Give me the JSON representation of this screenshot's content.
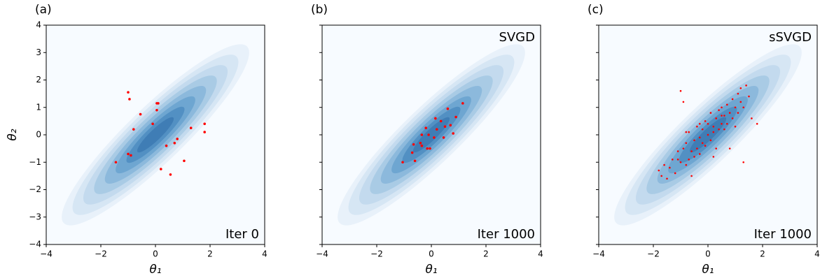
{
  "chart_data": [
    {
      "type": "scatter",
      "panel_label": "(a)",
      "annotation": "Iter 0",
      "annotation_corner": "lower right",
      "xlabel": "θ₁",
      "ylabel": "θ₂",
      "color": "#ff0000",
      "x": [
        -1.0,
        -0.95,
        0.05,
        0.1,
        -0.55,
        0.05,
        -0.8,
        -0.1,
        1.8,
        1.3,
        1.8,
        0.8,
        0.7,
        0.4,
        -1.0,
        -0.9,
        -1.45,
        0.2,
        1.05,
        0.55
      ],
      "y": [
        1.55,
        1.3,
        1.15,
        1.15,
        0.75,
        0.9,
        0.2,
        0.4,
        0.4,
        0.25,
        0.1,
        -0.15,
        -0.3,
        -0.4,
        -0.7,
        -0.75,
        -1.0,
        -1.25,
        -0.95,
        -1.45
      ],
      "xlim": [
        -4,
        4
      ],
      "ylim": [
        -4,
        4
      ],
      "xticks": [
        {
          "value": -4,
          "label": "−4"
        },
        {
          "value": -2,
          "label": "−2"
        },
        0,
        2,
        4
      ],
      "yticks": [
        {
          "value": -4,
          "label": "−4"
        },
        {
          "value": -3,
          "label": "−3"
        },
        {
          "value": -2,
          "label": "−2"
        },
        {
          "value": -1,
          "label": "−1"
        },
        0,
        1,
        2,
        3,
        4
      ]
    },
    {
      "type": "scatter",
      "panel_label": "(b)",
      "annotation": "Iter 1000",
      "method": "SVGD",
      "annotation_corner": "lower right",
      "xlabel": "θ₁",
      "color": "#ff0000",
      "x": [
        -1.05,
        -0.7,
        -0.6,
        -0.65,
        -0.4,
        -0.35,
        -0.35,
        -0.2,
        -0.1,
        0.1,
        -0.05,
        0.15,
        0.2,
        0.35,
        0.45,
        0.5,
        0.6,
        0.8,
        0.7,
        0.9,
        1.15,
        -0.15
      ],
      "y": [
        -1.0,
        -0.65,
        -0.95,
        -0.35,
        -0.3,
        -0.4,
        0.0,
        0.25,
        0.0,
        -0.1,
        -0.5,
        0.6,
        0.2,
        0.5,
        -0.1,
        0.3,
        0.95,
        0.05,
        0.35,
        0.65,
        1.15,
        -0.5
      ],
      "xlim": [
        -4,
        4
      ],
      "ylim": [
        -4,
        4
      ],
      "xticks": [
        {
          "value": -4,
          "label": "−4"
        },
        {
          "value": -2,
          "label": "−2"
        },
        0,
        2,
        4
      ],
      "yticks": [
        -4,
        -3,
        -2,
        -1,
        0,
        1,
        2,
        3,
        4
      ]
    },
    {
      "type": "scatter",
      "panel_label": "(c)",
      "annotation": "Iter 1000",
      "method": "sSVGD",
      "annotation_corner": "lower right",
      "xlabel": "θ₁",
      "color": "#ff0000",
      "x": [
        -1.8,
        -1.7,
        -1.6,
        -1.5,
        -1.4,
        -1.3,
        -1.2,
        -1.1,
        -1.0,
        -1.0,
        -0.9,
        -0.9,
        -0.8,
        -0.8,
        -0.7,
        -0.7,
        -0.6,
        -0.6,
        -0.5,
        -0.5,
        -0.4,
        -0.4,
        -0.3,
        -0.3,
        -0.2,
        -0.2,
        -0.1,
        -0.1,
        0,
        0,
        0.1,
        0.1,
        0.2,
        0.2,
        0.3,
        0.3,
        0.4,
        0.4,
        0.5,
        0.5,
        0.6,
        0.6,
        0.7,
        0.7,
        0.8,
        0.8,
        0.9,
        0.9,
        1.0,
        1.0,
        1.1,
        1.1,
        1.2,
        1.2,
        1.3,
        1.4,
        1.5,
        1.6,
        1.8,
        -1.1,
        -0.3,
        0.2,
        0.5,
        -0.8,
        1.3
      ],
      "y": [
        -1.3,
        -1.5,
        -1.1,
        -1.6,
        -1.2,
        -0.9,
        -1.4,
        -0.6,
        1.6,
        -1.0,
        1.2,
        -0.5,
        -1.1,
        -0.3,
        -0.9,
        0.1,
        -0.6,
        -1.5,
        -0.2,
        -0.8,
        0.3,
        -0.5,
        -0.1,
        -0.7,
        0.2,
        -0.3,
        0.5,
        -0.4,
        0.0,
        0.4,
        0.8,
        -0.2,
        0.3,
        0.1,
        0.6,
        -0.5,
        0.9,
        0.2,
        0.4,
        1.0,
        0.7,
        0.2,
        1.1,
        0.4,
        0.8,
        -0.5,
        1.3,
        0.6,
        1.0,
        0.3,
        1.5,
        0.8,
        1.2,
        1.7,
        1.0,
        1.8,
        1.4,
        0.6,
        0.4,
        -0.9,
        0.4,
        -0.8,
        0.7,
        0.1,
        -1.0
      ],
      "xlim": [
        -4,
        4
      ],
      "ylim": [
        -4,
        4
      ],
      "xticks": [
        {
          "value": -4,
          "label": "−4"
        },
        {
          "value": -2,
          "label": "−2"
        },
        0,
        2,
        4
      ],
      "yticks": [
        -4,
        -3,
        -2,
        -1,
        0,
        1,
        2,
        3,
        4
      ]
    }
  ]
}
